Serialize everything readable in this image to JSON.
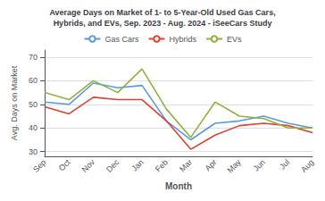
{
  "chart_data": {
    "type": "line",
    "title": "Average Days on Market of 1- to 5-Year-Old Used Gas Cars,\nHybrids, and EVs, Sep. 2023 - Aug. 2024 - iSeeCars Study",
    "xlabel": "Month",
    "ylabel": "Avg. Days on Market",
    "categories": [
      "Sep",
      "Oct",
      "Nov",
      "Dec",
      "Jan",
      "Feb",
      "Mar",
      "Apr",
      "May",
      "Jun",
      "Jul",
      "Aug"
    ],
    "series": [
      {
        "name": "Gas Cars",
        "color": "#5b9bd5",
        "values": [
          51,
          50,
          59,
          57,
          58,
          43,
          35,
          42,
          43,
          45,
          42,
          40
        ]
      },
      {
        "name": "Hybrids",
        "color": "#e04030",
        "values": [
          49,
          46,
          53,
          52,
          52,
          43,
          31,
          37,
          41,
          42,
          41,
          38
        ]
      },
      {
        "name": "EVs",
        "color": "#90b040",
        "values": [
          55,
          52,
          60,
          55,
          65,
          48,
          36,
          51,
          45,
          44,
          40,
          40
        ]
      }
    ],
    "ylim": [
      28,
      73
    ],
    "yticks": [
      30,
      40,
      50,
      60,
      70
    ],
    "grid": true,
    "legend": "top"
  }
}
